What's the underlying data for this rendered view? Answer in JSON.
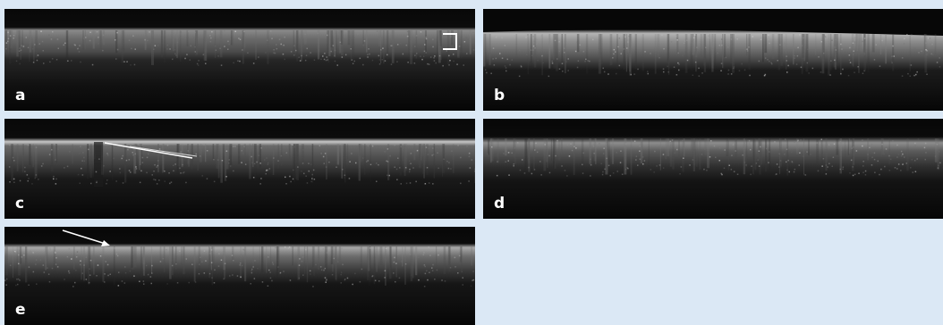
{
  "figure": {
    "background_color": "#dbe8f5",
    "panels": [
      {
        "id": "a",
        "label": "a",
        "annotation": "bracket"
      },
      {
        "id": "b",
        "label": "b",
        "annotation": ""
      },
      {
        "id": "c",
        "label": "c",
        "annotation": "arrow"
      },
      {
        "id": "d",
        "label": "d",
        "annotation": ""
      },
      {
        "id": "e",
        "label": "e",
        "annotation": "arrow"
      }
    ],
    "image_type": "grayscale OCT cross-section scans",
    "annotation_color": "#ffffff"
  }
}
